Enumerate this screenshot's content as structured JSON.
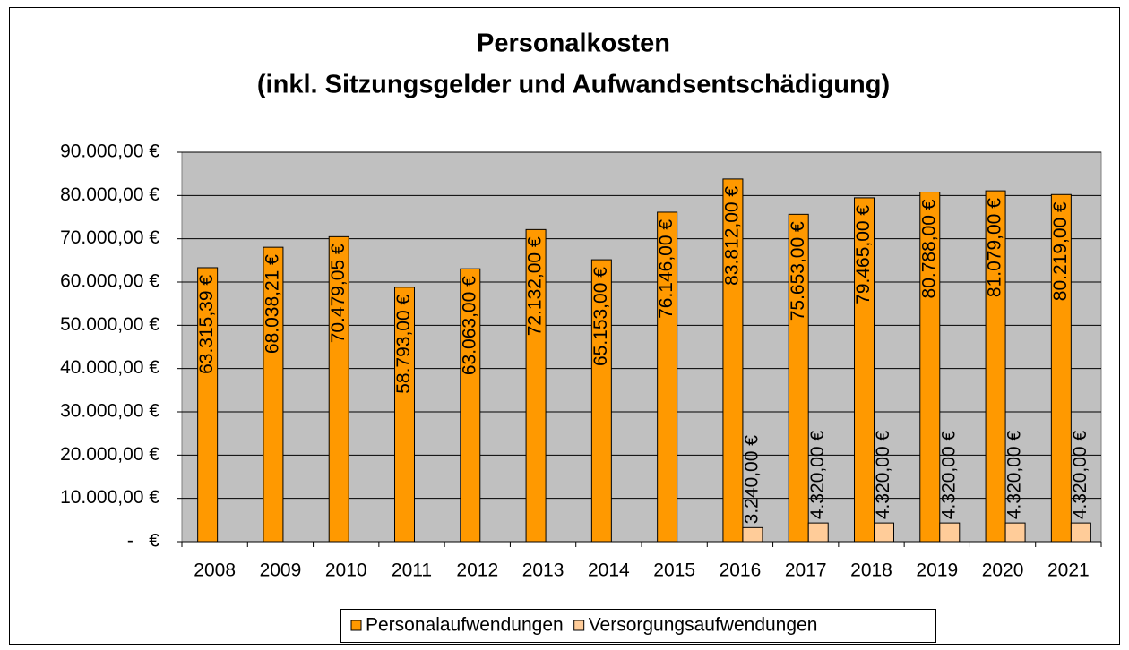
{
  "chart_data": {
    "type": "bar",
    "title": "Personalkosten",
    "subtitle": "(inkl. Sitzungsgelder und Aufwandsentschädigung)",
    "categories": [
      "2008",
      "2009",
      "2010",
      "2011",
      "2012",
      "2013",
      "2014",
      "2015",
      "2016",
      "2017",
      "2018",
      "2019",
      "2020",
      "2021"
    ],
    "series": [
      {
        "name": "Personalaufwendungen",
        "color": "#ff9900",
        "values": [
          63315.39,
          68038.21,
          70479.05,
          58793,
          63063,
          72132,
          65153,
          76146,
          83812,
          75653,
          79465,
          80788,
          81079,
          80219
        ],
        "value_labels": [
          "63.315,39 €",
          "68.038,21 €",
          "70.479,05 €",
          "58.793,00 €",
          "63.063,00 €",
          "72.132,00 €",
          "65.153,00 €",
          "76.146,00 €",
          "83.812,00 €",
          "75.653,00 €",
          "79.465,00 €",
          "80.788,00 €",
          "81.079,00 €",
          "80.219,00 €"
        ]
      },
      {
        "name": "Versorgungsaufwendungen",
        "color": "#ffcc99",
        "values": [
          null,
          null,
          null,
          null,
          null,
          null,
          null,
          null,
          3240,
          4320,
          4320,
          4320,
          4320,
          4320
        ],
        "value_labels": [
          null,
          null,
          null,
          null,
          null,
          null,
          null,
          null,
          "3.240,00 €",
          "4.320,00 €",
          "4.320,00 €",
          "4.320,00 €",
          "4.320,00 €",
          "4.320,00 €"
        ]
      }
    ],
    "ylim": [
      0,
      90000
    ],
    "yticks": [
      {
        "value": 0,
        "label": "-   €"
      },
      {
        "value": 10000,
        "label": "10.000,00 €"
      },
      {
        "value": 20000,
        "label": "20.000,00 €"
      },
      {
        "value": 30000,
        "label": "30.000,00 €"
      },
      {
        "value": 40000,
        "label": "40.000,00 €"
      },
      {
        "value": 50000,
        "label": "50.000,00 €"
      },
      {
        "value": 60000,
        "label": "60.000,00 €"
      },
      {
        "value": 70000,
        "label": "70.000,00 €"
      },
      {
        "value": 80000,
        "label": "80.000,00 €"
      },
      {
        "value": 90000,
        "label": "90.000,00 €"
      }
    ],
    "grid": true,
    "legend": "bottom"
  }
}
